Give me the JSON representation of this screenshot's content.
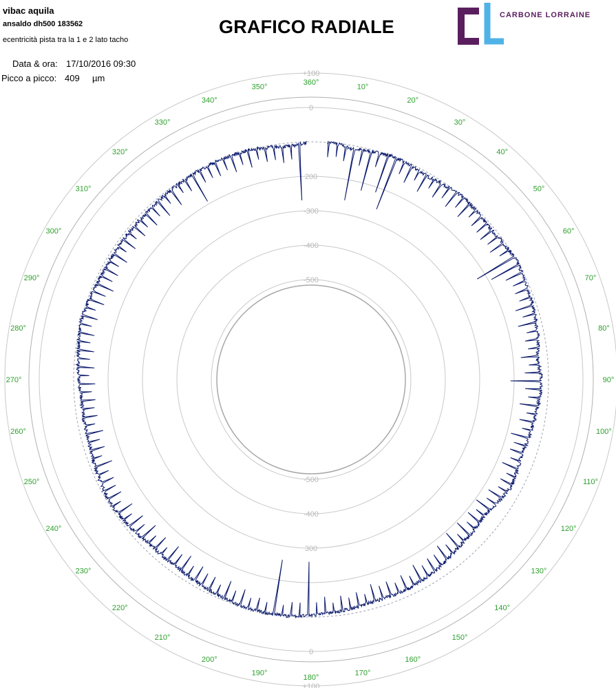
{
  "header": {
    "company": "vibac aquila",
    "machine": "ansaldo dh500 183562",
    "description": "ecentricità pista tra la 1 e 2 lato tacho",
    "datetime_label": "Data & ora:",
    "datetime_value": "17/10/2016 09:30",
    "peak_label": "Picco a picco:",
    "peak_value": "409",
    "peak_unit": "µm"
  },
  "title": "GRAFICO RADIALE",
  "logo": {
    "letters": "CL",
    "text": "CARBONE LORRAINE",
    "color_primary": "#5a1e5f",
    "color_accent": "#4fb3e8"
  },
  "chart_data": {
    "type": "polar-line",
    "title": "GRAFICO RADIALE",
    "angle_unit": "deg",
    "angle_start": "top",
    "angle_direction": "clockwise",
    "angle_ticks": [
      0,
      10,
      20,
      30,
      40,
      50,
      60,
      70,
      80,
      90,
      100,
      110,
      120,
      130,
      140,
      150,
      160,
      170,
      180,
      190,
      200,
      210,
      220,
      230,
      240,
      250,
      260,
      270,
      280,
      290,
      300,
      310,
      320,
      330,
      340,
      350
    ],
    "angle_tick_labels": [
      "360°",
      "10°",
      "20°",
      "30°",
      "40°",
      "50°",
      "60°",
      "70°",
      "80°",
      "90°",
      "100°",
      "110°",
      "120°",
      "130°",
      "140°",
      "150°",
      "160°",
      "170°",
      "180°",
      "190°",
      "200°",
      "210°",
      "220°",
      "230°",
      "240°",
      "250°",
      "260°",
      "270°",
      "280°",
      "290°",
      "300°",
      "310°",
      "320°",
      "330°",
      "340°",
      "350°"
    ],
    "radial_ticks": [
      100,
      0,
      -200,
      -300,
      -400,
      -500
    ],
    "radial_tick_labels": [
      "+100",
      "0",
      "200",
      "300",
      "400",
      "500"
    ],
    "radial_tick_labels_bottom": [
      "+100",
      "0",
      "300",
      "-400",
      "-500"
    ],
    "radial_tick_labels_top": [
      "+100",
      "0",
      "200",
      "-300",
      "-400",
      "-500"
    ],
    "rlim": [
      -500,
      100
    ],
    "reference_dashed": -100,
    "grid": true,
    "line_color": "#0b1a6b",
    "series": [
      {
        "anchors": [
          [
            0,
            -60
          ],
          [
            3,
            -60
          ],
          [
            4,
            -100
          ],
          [
            6,
            -100
          ],
          [
            10,
            -110
          ],
          [
            20,
            -100
          ],
          [
            30,
            -110
          ],
          [
            40,
            -100
          ],
          [
            50,
            -110
          ],
          [
            60,
            -100
          ],
          [
            70,
            -110
          ],
          [
            80,
            -120
          ],
          [
            85,
            -130
          ],
          [
            90,
            -120
          ],
          [
            100,
            -130
          ],
          [
            110,
            -140
          ],
          [
            118,
            -130
          ],
          [
            123,
            -140
          ],
          [
            128,
            -150
          ],
          [
            133,
            -145
          ],
          [
            140,
            -140
          ],
          [
            145,
            -130
          ],
          [
            155,
            -120
          ],
          [
            165,
            -120
          ],
          [
            175,
            -110
          ],
          [
            185,
            -100
          ],
          [
            195,
            -100
          ],
          [
            205,
            -110
          ],
          [
            215,
            -120
          ],
          [
            225,
            -120
          ],
          [
            232,
            -110
          ],
          [
            238,
            -105
          ],
          [
            245,
            -110
          ],
          [
            255,
            -120
          ],
          [
            265,
            -120
          ],
          [
            275,
            -110
          ],
          [
            285,
            -100
          ],
          [
            295,
            -110
          ],
          [
            305,
            -110
          ],
          [
            315,
            -110
          ],
          [
            325,
            -105
          ],
          [
            335,
            -100
          ],
          [
            345,
            -100
          ],
          [
            355,
            -110
          ],
          [
            360,
            -100
          ]
        ],
        "dips": [
          [
            3,
            -350
          ],
          [
            10,
            -360
          ],
          [
            15,
            -300
          ],
          [
            20,
            -290
          ],
          [
            60,
            -250
          ],
          [
            90,
            -270
          ],
          [
            180,
            -290
          ],
          [
            190,
            -290
          ],
          [
            330,
            -250
          ],
          [
            358,
            -300
          ]
        ]
      }
    ]
  }
}
